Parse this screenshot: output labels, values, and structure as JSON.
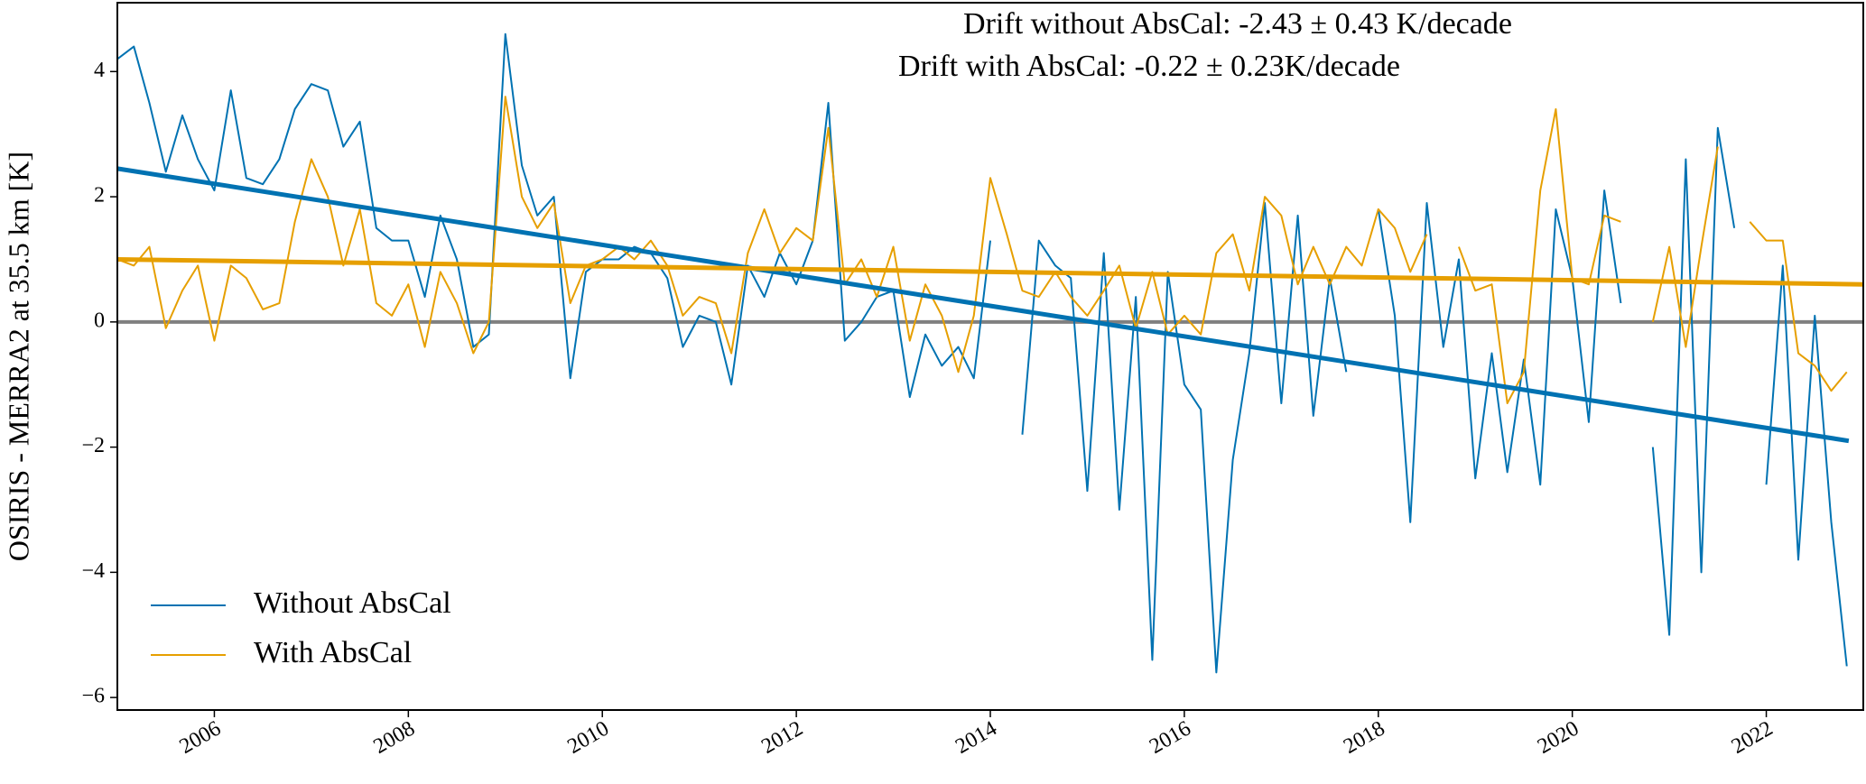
{
  "chart_data": {
    "type": "line",
    "ylabel": "OSIRIS - MERRA2 at 35.5 km [K]",
    "annotations": [
      "Drift without AbsCal: -2.43 ± 0.43 K/decade",
      "Drift with AbsCal: -0.22 ± 0.23K/decade"
    ],
    "x": [
      2005.0,
      2005.17,
      2005.33,
      2005.5,
      2005.67,
      2005.83,
      2006.0,
      2006.17,
      2006.33,
      2006.5,
      2006.67,
      2006.83,
      2007.0,
      2007.17,
      2007.33,
      2007.5,
      2007.67,
      2007.83,
      2008.0,
      2008.17,
      2008.33,
      2008.5,
      2008.67,
      2008.83,
      2009.0,
      2009.17,
      2009.33,
      2009.5,
      2009.67,
      2009.83,
      2010.0,
      2010.17,
      2010.33,
      2010.5,
      2010.67,
      2010.83,
      2011.0,
      2011.17,
      2011.33,
      2011.5,
      2011.67,
      2011.83,
      2012.0,
      2012.17,
      2012.33,
      2012.5,
      2012.67,
      2012.83,
      2013.0,
      2013.17,
      2013.33,
      2013.5,
      2013.67,
      2013.83,
      2014.0,
      2014.17,
      2014.33,
      2014.5,
      2014.67,
      2014.83,
      2015.0,
      2015.17,
      2015.33,
      2015.5,
      2015.67,
      2015.83,
      2016.0,
      2016.17,
      2016.33,
      2016.5,
      2016.67,
      2016.83,
      2017.0,
      2017.17,
      2017.33,
      2017.5,
      2017.67,
      2017.83,
      2018.0,
      2018.17,
      2018.33,
      2018.5,
      2018.67,
      2018.83,
      2019.0,
      2019.17,
      2019.33,
      2019.5,
      2019.67,
      2019.83,
      2020.0,
      2020.17,
      2020.33,
      2020.5,
      2020.67,
      2020.83,
      2021.0,
      2021.17,
      2021.33,
      2021.5,
      2021.67,
      2021.83,
      2022.0,
      2022.17,
      2022.33,
      2022.5,
      2022.67,
      2022.83
    ],
    "series": [
      {
        "name": "Without AbsCal",
        "color": "#0072b2",
        "values": [
          4.2,
          4.4,
          3.5,
          2.4,
          3.3,
          2.6,
          2.1,
          3.7,
          2.3,
          2.2,
          2.6,
          3.4,
          3.8,
          3.7,
          2.8,
          3.2,
          1.5,
          1.3,
          1.3,
          0.4,
          1.7,
          1.0,
          -0.4,
          -0.2,
          4.6,
          2.5,
          1.7,
          2.0,
          -0.9,
          0.8,
          1.0,
          1.0,
          1.2,
          1.1,
          0.7,
          -0.4,
          0.1,
          0.0,
          -1.0,
          0.9,
          0.4,
          1.1,
          0.6,
          1.3,
          3.5,
          -0.3,
          0.0,
          0.4,
          0.5,
          -1.2,
          -0.2,
          -0.7,
          -0.4,
          -0.9,
          1.3,
          null,
          -1.8,
          1.3,
          0.9,
          0.7,
          -2.7,
          1.1,
          -3.0,
          0.4,
          -5.4,
          0.8,
          -1.0,
          -1.4,
          -5.6,
          -2.2,
          -0.5,
          1.9,
          -1.3,
          1.7,
          -1.5,
          0.7,
          -0.8,
          null,
          1.8,
          0.1,
          -3.2,
          1.9,
          -0.4,
          1.0,
          -2.5,
          -0.5,
          -2.4,
          -0.6,
          -2.6,
          1.8,
          0.7,
          -1.6,
          2.1,
          0.3,
          null,
          -2.0,
          -5.0,
          2.6,
          -4.0,
          3.1,
          1.5,
          null,
          -2.6,
          0.9,
          -3.8,
          0.1,
          -3.2,
          -5.5
        ]
      },
      {
        "name": "With AbsCal",
        "color": "#e69f00",
        "values": [
          1.0,
          0.9,
          1.2,
          -0.1,
          0.5,
          0.9,
          -0.3,
          0.9,
          0.7,
          0.2,
          0.3,
          1.6,
          2.6,
          2.0,
          0.9,
          1.8,
          0.3,
          0.1,
          0.6,
          -0.4,
          0.8,
          0.3,
          -0.5,
          0.0,
          3.6,
          2.0,
          1.5,
          1.9,
          0.3,
          0.9,
          1.0,
          1.2,
          1.0,
          1.3,
          0.9,
          0.1,
          0.4,
          0.3,
          -0.5,
          1.1,
          1.8,
          1.1,
          1.5,
          1.3,
          3.1,
          0.6,
          1.0,
          0.4,
          1.2,
          -0.3,
          0.6,
          0.1,
          -0.8,
          0.1,
          2.3,
          1.4,
          0.5,
          0.4,
          0.8,
          0.4,
          0.1,
          0.5,
          0.9,
          -0.1,
          0.8,
          -0.2,
          0.1,
          -0.2,
          1.1,
          1.4,
          0.5,
          2.0,
          1.7,
          0.6,
          1.2,
          0.6,
          1.2,
          0.9,
          1.8,
          1.5,
          0.8,
          1.4,
          null,
          1.2,
          0.5,
          0.6,
          -1.3,
          -0.8,
          2.1,
          3.4,
          0.7,
          0.6,
          1.7,
          1.6,
          null,
          0.0,
          1.2,
          -0.4,
          1.2,
          2.8,
          null,
          1.6,
          1.3,
          1.3,
          -0.5,
          -0.7,
          -1.1,
          -0.8
        ]
      }
    ],
    "trend_lines": [
      {
        "color": "#0072b2",
        "x": [
          2005.0,
          2022.85
        ],
        "values": [
          2.45,
          -1.9
        ]
      },
      {
        "color": "#e69f00",
        "x": [
          2005.0,
          2023.0
        ],
        "values": [
          1.0,
          0.6
        ]
      }
    ],
    "hlines": [
      {
        "value": 0,
        "color": "#808080"
      }
    ],
    "xlim": [
      2005.0,
      2023.0
    ],
    "ylim": [
      -6.2,
      5.1
    ],
    "xticks": [
      2006,
      2008,
      2010,
      2012,
      2014,
      2016,
      2018,
      2020,
      2022
    ],
    "yticks": [
      {
        "value": -6,
        "label": "−6"
      },
      {
        "value": -4,
        "label": "−4"
      },
      {
        "value": -2,
        "label": "−2"
      },
      0,
      2,
      4
    ],
    "legend": "lower left"
  }
}
